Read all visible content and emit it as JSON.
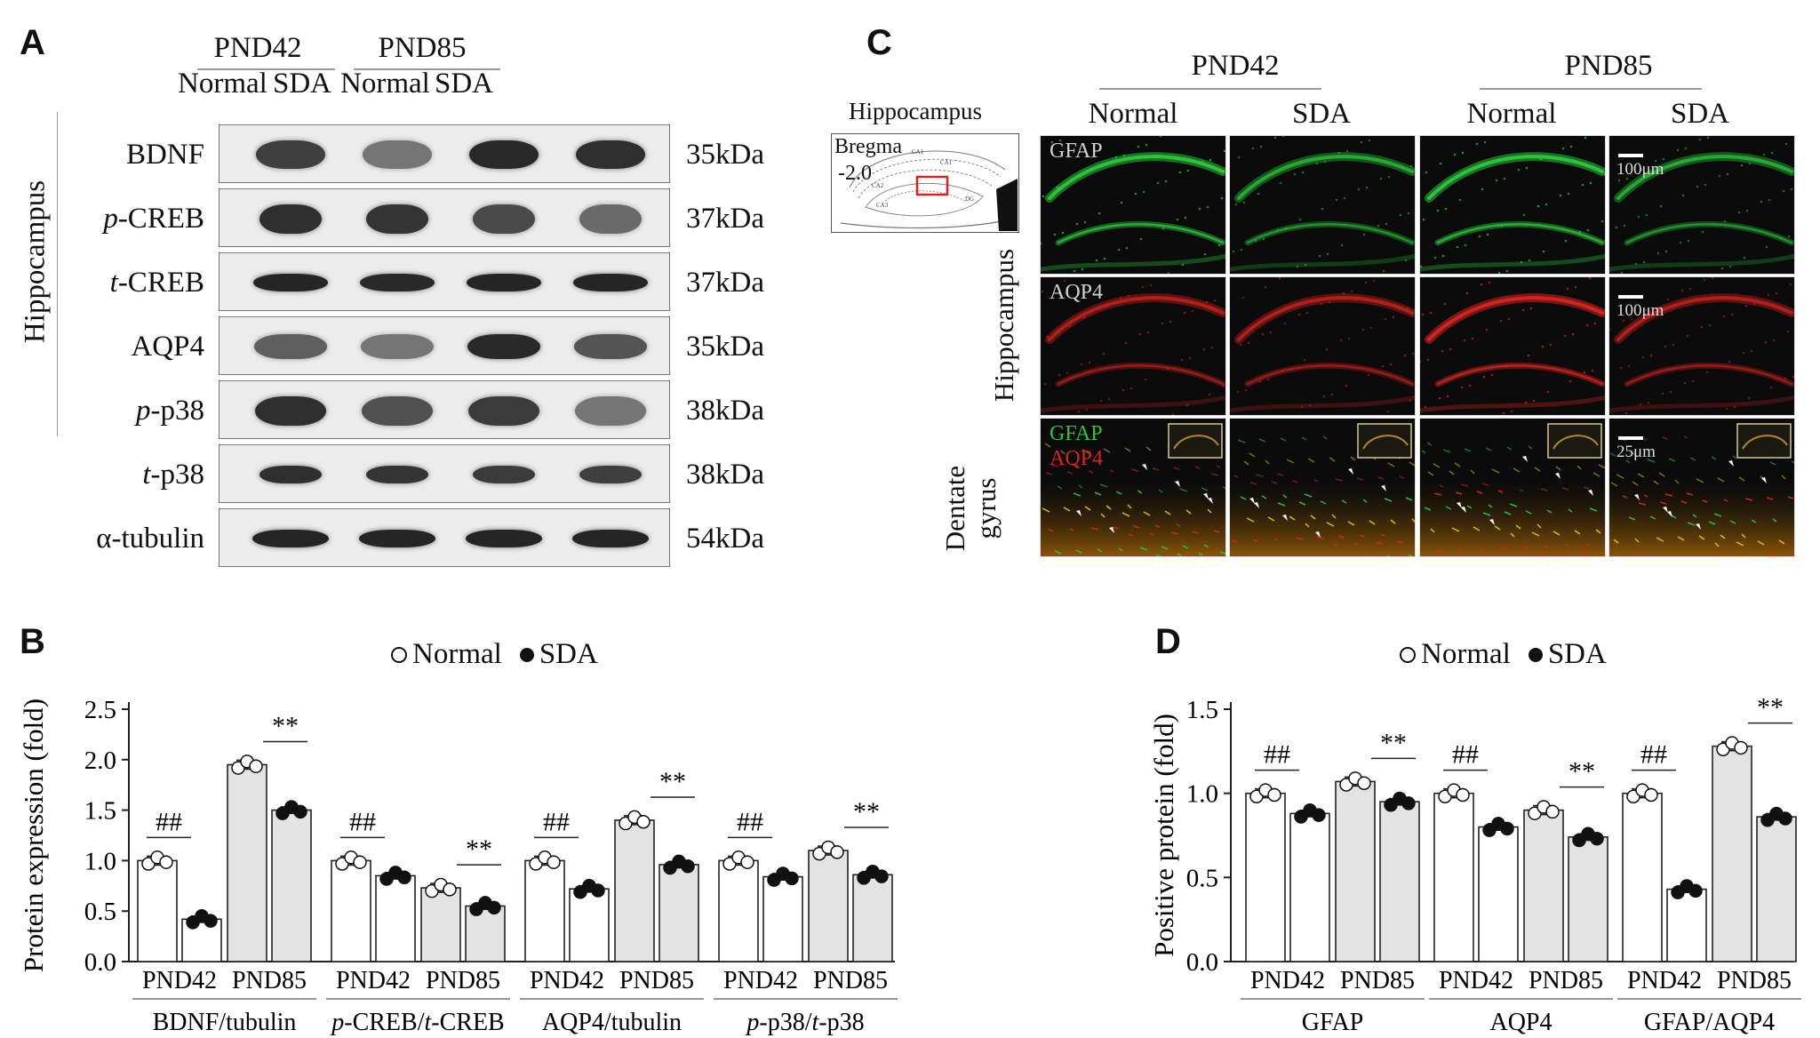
{
  "panels": {
    "a": "A",
    "b": "B",
    "c": "C",
    "d": "D"
  },
  "blot": {
    "group1": "PND42",
    "group2": "PND85",
    "cols": [
      "Normal",
      "SDA",
      "Normal",
      "SDA"
    ],
    "side_label": "Hippocampus",
    "rows": [
      {
        "label_pre": "",
        "label_it": "",
        "label_post": "BDNF",
        "kda": "35kDa"
      },
      {
        "label_pre": "",
        "label_it": "p",
        "label_post": "-CREB",
        "kda": "37kDa"
      },
      {
        "label_pre": "",
        "label_it": "t",
        "label_post": "-CREB",
        "kda": "37kDa"
      },
      {
        "label_pre": "",
        "label_it": "",
        "label_post": "AQP4",
        "kda": "35kDa"
      },
      {
        "label_pre": "",
        "label_it": "p",
        "label_post": "-p38",
        "kda": "38kDa"
      },
      {
        "label_pre": "",
        "label_it": "t",
        "label_post": "-p38",
        "kda": "38kDa"
      },
      {
        "label_pre": "",
        "label_it": "",
        "label_post": "α-tubulin",
        "kda": "54kDa"
      }
    ]
  },
  "micro": {
    "group1": "PND42",
    "group2": "PND85",
    "cols": [
      "Normal",
      "SDA",
      "Normal",
      "SDA"
    ],
    "atlas_title": "Hippocampus",
    "atlas_bregma": "Bregma",
    "atlas_value": "-2.0",
    "atlas_regions": [
      "CA1",
      "CA2",
      "CA3",
      "DG",
      "CA1"
    ],
    "row_label_hip": "Hippocampus",
    "row_label_dg1": "Dentate",
    "row_label_dg2": "gyrus",
    "gfap_label": "GFAP",
    "aqp4_label": "AQP4",
    "scale_100": "100μm",
    "scale_25": "25μm"
  },
  "legend": {
    "normal": "Normal",
    "sda": "SDA"
  },
  "colors": {
    "bar_pnd42": "#ffffff",
    "bar_pnd85": "#e3e3e3",
    "gfap": "#29c43a",
    "aqp4": "#d9241e",
    "inset_border": "#d8c98a"
  },
  "chart_data": [
    {
      "type": "bar",
      "panel": "B",
      "ylabel": "Protein expression (fold)",
      "ylim": [
        0,
        2.5
      ],
      "yticks": [
        "0.0",
        "0.5",
        "1.0",
        "1.5",
        "2.0",
        "2.5"
      ],
      "groups": [
        {
          "name_pre": "BDNF/tubulin",
          "name_it": "",
          "name_post": "",
          "name_it2": "",
          "name_post2": "",
          "ticks": [
            "PND42",
            "PND85"
          ],
          "normal": [
            1.0,
            1.95
          ],
          "sda": [
            0.42,
            1.5
          ],
          "sig": [
            {
              "period": "PND42",
              "mark": "##"
            },
            {
              "period": "PND85",
              "mark": "**"
            }
          ]
        },
        {
          "name_pre": "",
          "name_it": "p",
          "name_post": "-CREB/",
          "name_it2": "t",
          "name_post2": "-CREB",
          "ticks": [
            "PND42",
            "PND85"
          ],
          "normal": [
            1.0,
            0.73
          ],
          "sda": [
            0.85,
            0.55
          ],
          "sig": [
            {
              "period": "PND42",
              "mark": "##"
            },
            {
              "period": "PND85",
              "mark": "**"
            }
          ]
        },
        {
          "name_pre": "AQP4/tubulin",
          "name_it": "",
          "name_post": "",
          "name_it2": "",
          "name_post2": "",
          "ticks": [
            "PND42",
            "PND85"
          ],
          "normal": [
            1.0,
            1.4
          ],
          "sda": [
            0.72,
            0.96
          ],
          "sig": [
            {
              "period": "PND42",
              "mark": "##"
            },
            {
              "period": "PND85",
              "mark": "**"
            }
          ]
        },
        {
          "name_pre": "",
          "name_it": "p",
          "name_post": "-p38/",
          "name_it2": "t",
          "name_post2": "-p38",
          "ticks": [
            "PND42",
            "PND85"
          ],
          "normal": [
            1.0,
            1.1
          ],
          "sda": [
            0.84,
            0.86
          ],
          "sig": [
            {
              "period": "PND42",
              "mark": "##"
            },
            {
              "period": "PND85",
              "mark": "**"
            }
          ]
        }
      ]
    },
    {
      "type": "bar",
      "panel": "D",
      "ylabel": "Positive protein (fold)",
      "ylim": [
        0,
        1.5
      ],
      "yticks": [
        "0.0",
        "0.5",
        "1.0",
        "1.5"
      ],
      "groups": [
        {
          "name_pre": "GFAP",
          "name_it": "",
          "name_post": "",
          "name_it2": "",
          "name_post2": "",
          "ticks": [
            "PND42",
            "PND85"
          ],
          "normal": [
            1.0,
            1.07
          ],
          "sda": [
            0.88,
            0.95
          ],
          "sig": [
            {
              "period": "PND42",
              "mark": "##"
            },
            {
              "period": "PND85",
              "mark": "**"
            }
          ]
        },
        {
          "name_pre": "AQP4",
          "name_it": "",
          "name_post": "",
          "name_it2": "",
          "name_post2": "",
          "ticks": [
            "PND42",
            "PND85"
          ],
          "normal": [
            1.0,
            0.9
          ],
          "sda": [
            0.8,
            0.74
          ],
          "sig": [
            {
              "period": "PND42",
              "mark": "##"
            },
            {
              "period": "PND85",
              "mark": "**"
            }
          ]
        },
        {
          "name_pre": "GFAP/AQP4",
          "name_it": "",
          "name_post": "",
          "name_it2": "",
          "name_post2": "",
          "ticks": [
            "PND42",
            "PND85"
          ],
          "normal": [
            1.0,
            1.28
          ],
          "sda": [
            0.43,
            0.86
          ],
          "sig": [
            {
              "period": "PND42",
              "mark": "##"
            },
            {
              "period": "PND85",
              "mark": "**"
            }
          ]
        }
      ]
    }
  ]
}
